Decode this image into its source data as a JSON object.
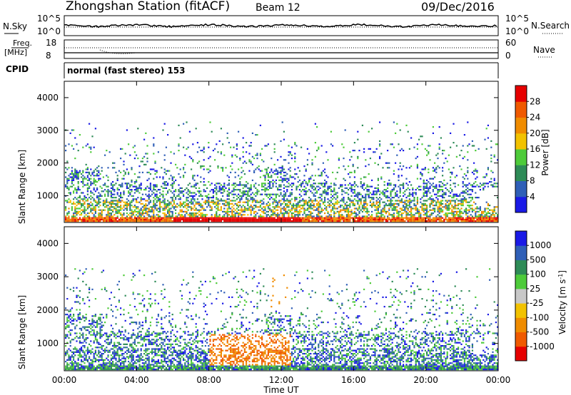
{
  "header": {
    "station": "Zhongshan Station (fitACF)",
    "beam": "Beam 12",
    "date": "09/Dec/2016"
  },
  "noise_panel": {
    "left_label": "N.Sky",
    "left_ticks": [
      "10^5",
      "10^0"
    ],
    "right_label": "N.Search",
    "right_ticks": [
      "10^5",
      "10^0"
    ]
  },
  "freq_panel": {
    "left_label_1": "Freq.",
    "left_label_2": "[MHz]",
    "left_ticks": [
      "18",
      "8"
    ],
    "right_label": "Nave",
    "right_ticks": [
      "60",
      "0"
    ]
  },
  "cpid": {
    "label": "CPID",
    "value": "normal (fast stereo) 153"
  },
  "colors": {
    "power": [
      "#1a1ae6",
      "#2f5fb7",
      "#2e8b57",
      "#4ecb3a",
      "#f2c200",
      "#f08c00",
      "#f05a00",
      "#e60000"
    ],
    "velocity": [
      "#1a1ae6",
      "#2f5fb7",
      "#2e8b57",
      "#4ecb3a",
      "#c8c8c8",
      "#f2c200",
      "#f08c00",
      "#f05a00",
      "#e60000"
    ],
    "ground_scatter": "#a9a9a9"
  },
  "chart_data": [
    {
      "type": "heatmap",
      "panel": "power",
      "ylabel": "Slant Range [km]",
      "ylim": [
        180,
        4500
      ],
      "yticks": [
        "1000",
        "2000",
        "3000",
        "4000"
      ],
      "xticks": [
        "00:00",
        "04:00",
        "08:00",
        "12:00",
        "16:00",
        "20:00",
        "00:00"
      ],
      "xlim_hours": [
        0,
        24
      ],
      "colorbar": {
        "label": "Power [dB]",
        "ticks": [
          "4",
          "8",
          "12",
          "16",
          "20",
          "24",
          "28"
        ],
        "range": [
          0,
          32
        ]
      }
    },
    {
      "type": "heatmap",
      "panel": "velocity",
      "ylabel": "Slant Range [km]",
      "ylim": [
        180,
        4500
      ],
      "yticks": [
        "1000",
        "2000",
        "3000",
        "4000"
      ],
      "xticks": [
        "00:00",
        "04:00",
        "08:00",
        "12:00",
        "16:00",
        "20:00",
        "00:00"
      ],
      "xlim_hours": [
        0,
        24
      ],
      "xlabel": "Time UT",
      "colorbar": {
        "label": "Velocity [m s",
        "label_sup": "-1",
        "label_end": "]",
        "ticks": [
          "1000",
          "500",
          "100",
          "25",
          "-25",
          "-100",
          "-500",
          "-1000"
        ]
      }
    }
  ]
}
